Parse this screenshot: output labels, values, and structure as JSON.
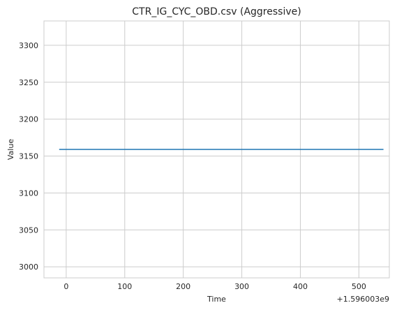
{
  "chart_data": {
    "type": "line",
    "title": "CTR_IG_CYC_OBD.csv (Aggressive)",
    "xlabel": "Time",
    "ylabel": "Value",
    "x_offset_label": "+1.596003e9",
    "xlim": [
      -38,
      552
    ],
    "ylim": [
      2985,
      3333
    ],
    "x_ticks": [
      0,
      100,
      200,
      300,
      400,
      500
    ],
    "x_tick_labels": [
      "0",
      "100",
      "200",
      "300",
      "400",
      "500"
    ],
    "y_ticks": [
      3000,
      3050,
      3100,
      3150,
      3200,
      3250,
      3300
    ],
    "y_tick_labels": [
      "3000",
      "3050",
      "3100",
      "3150",
      "3200",
      "3250",
      "3300"
    ],
    "grid": true,
    "legend": false,
    "series": [
      {
        "x": [
          -12,
          542
        ],
        "y": [
          3159,
          3159
        ],
        "color": "#1f77b4"
      }
    ]
  }
}
